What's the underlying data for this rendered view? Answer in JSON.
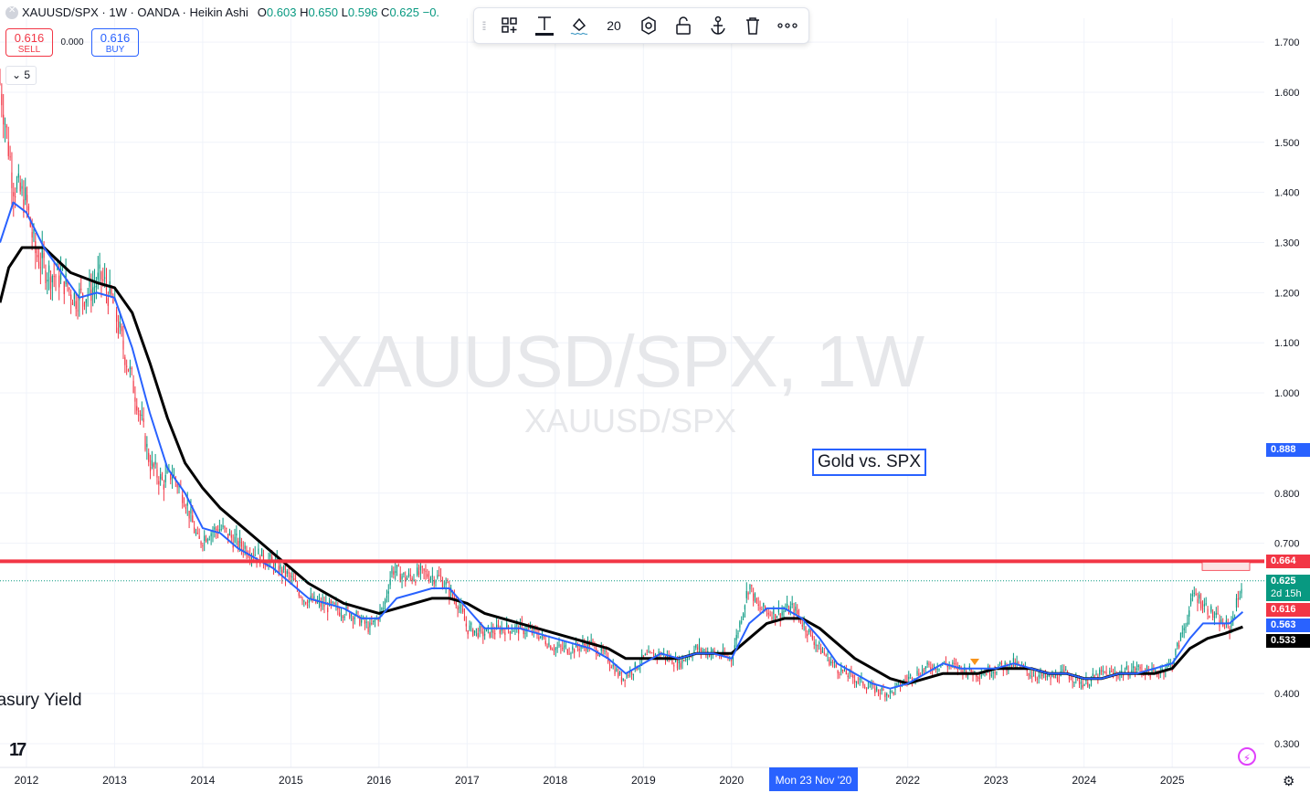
{
  "legend": {
    "symbol": "XAUUSD/SPX · 1W · OANDA · Heikin Ashi",
    "open_label": "O",
    "open": "0.603",
    "high_label": "H",
    "high": "0.650",
    "low_label": "L",
    "low": "0.596",
    "close_label": "C",
    "close": "0.625",
    "change": "−0."
  },
  "trade": {
    "sell_price": "0.616",
    "sell_label": "SELL",
    "spread": "0.000",
    "buy_price": "0.616",
    "buy_label": "BUY"
  },
  "indicators_toggle": "5",
  "toolbar": {
    "font_size": "20"
  },
  "watermark": {
    "main": "XAUUSD/SPX, 1W",
    "sub": "XAUUSD/SPX"
  },
  "notes": {
    "text1": "Gold vs. SPX",
    "text2": "easury Yield"
  },
  "crosshair": {
    "date": "Mon 23 Nov '20"
  },
  "badges": {
    "alert": "0.888",
    "level": "0.664",
    "last": "0.625",
    "countdown": "2d 15h",
    "bid": "0.616",
    "ma_fast": "0.563",
    "ma_slow": "0.533"
  },
  "colors": {
    "up": "#089981",
    "down": "#f23645",
    "ma_fast": "#2962ff",
    "ma_slow": "#000000",
    "level": "#f23645"
  },
  "chart_data": {
    "type": "candlestick",
    "title": "XAUUSD/SPX, 1W",
    "y_ticks": [
      1.7,
      1.6,
      1.5,
      1.4,
      1.3,
      1.2,
      1.1,
      1.0,
      0.8,
      0.7,
      0.4,
      0.3
    ],
    "y_tick_labels": [
      "1.700",
      "1.600",
      "1.500",
      "1.400",
      "1.300",
      "1.200",
      "1.100",
      "1.000",
      "0.800",
      "0.700",
      "0.400",
      "0.300"
    ],
    "x_ticks": [
      "2012",
      "2013",
      "2014",
      "2015",
      "2016",
      "2017",
      "2018",
      "2019",
      "2020",
      "2022",
      "2023",
      "2024",
      "2025"
    ],
    "x_tick_dates": [
      2012.0,
      2013.0,
      2014.0,
      2015.0,
      2016.0,
      2017.0,
      2018.0,
      2019.0,
      2020.0,
      2022.0,
      2023.0,
      2024.0,
      2025.0
    ],
    "ylim": [
      0.23,
      1.78
    ],
    "xlim": [
      2011.7,
      2025.9
    ],
    "horizontal_level": 0.664,
    "price_path": [
      [
        2011.7,
        1.62
      ],
      [
        2011.85,
        1.42
      ],
      [
        2012.0,
        1.38
      ],
      [
        2012.1,
        1.28
      ],
      [
        2012.25,
        1.24
      ],
      [
        2012.4,
        1.23
      ],
      [
        2012.55,
        1.19
      ],
      [
        2012.7,
        1.2
      ],
      [
        2012.85,
        1.23
      ],
      [
        2012.98,
        1.18
      ],
      [
        2013.1,
        1.09
      ],
      [
        2013.25,
        0.99
      ],
      [
        2013.4,
        0.86
      ],
      [
        2013.55,
        0.82
      ],
      [
        2013.65,
        0.84
      ],
      [
        2013.8,
        0.79
      ],
      [
        2013.95,
        0.7
      ],
      [
        2014.05,
        0.72
      ],
      [
        2014.2,
        0.73
      ],
      [
        2014.4,
        0.7
      ],
      [
        2014.6,
        0.68
      ],
      [
        2014.8,
        0.66
      ],
      [
        2015.0,
        0.63
      ],
      [
        2015.15,
        0.59
      ],
      [
        2015.3,
        0.58
      ],
      [
        2015.5,
        0.57
      ],
      [
        2015.7,
        0.56
      ],
      [
        2015.9,
        0.53
      ],
      [
        2016.05,
        0.57
      ],
      [
        2016.15,
        0.65
      ],
      [
        2016.3,
        0.63
      ],
      [
        2016.5,
        0.64
      ],
      [
        2016.7,
        0.63
      ],
      [
        2016.9,
        0.58
      ],
      [
        2017.0,
        0.53
      ],
      [
        2017.2,
        0.52
      ],
      [
        2017.4,
        0.53
      ],
      [
        2017.6,
        0.53
      ],
      [
        2017.8,
        0.52
      ],
      [
        2018.0,
        0.49
      ],
      [
        2018.2,
        0.49
      ],
      [
        2018.4,
        0.5
      ],
      [
        2018.6,
        0.47
      ],
      [
        2018.75,
        0.43
      ],
      [
        2018.9,
        0.45
      ],
      [
        2019.0,
        0.47
      ],
      [
        2019.2,
        0.48
      ],
      [
        2019.4,
        0.46
      ],
      [
        2019.6,
        0.49
      ],
      [
        2019.8,
        0.48
      ],
      [
        2020.0,
        0.47
      ],
      [
        2020.2,
        0.62
      ],
      [
        2020.3,
        0.57
      ],
      [
        2020.5,
        0.56
      ],
      [
        2020.7,
        0.57
      ],
      [
        2020.85,
        0.53
      ],
      [
        2021.0,
        0.49
      ],
      [
        2021.2,
        0.45
      ],
      [
        2021.4,
        0.43
      ],
      [
        2021.6,
        0.41
      ],
      [
        2021.8,
        0.4
      ],
      [
        2022.0,
        0.43
      ],
      [
        2022.2,
        0.45
      ],
      [
        2022.4,
        0.46
      ],
      [
        2022.6,
        0.45
      ],
      [
        2022.8,
        0.44
      ],
      [
        2023.0,
        0.45
      ],
      [
        2023.2,
        0.46
      ],
      [
        2023.4,
        0.44
      ],
      [
        2023.6,
        0.43
      ],
      [
        2023.8,
        0.44
      ],
      [
        2024.0,
        0.42
      ],
      [
        2024.2,
        0.44
      ],
      [
        2024.4,
        0.44
      ],
      [
        2024.6,
        0.45
      ],
      [
        2024.8,
        0.44
      ],
      [
        2025.0,
        0.46
      ],
      [
        2025.15,
        0.54
      ],
      [
        2025.25,
        0.6
      ],
      [
        2025.4,
        0.57
      ],
      [
        2025.55,
        0.54
      ],
      [
        2025.65,
        0.53
      ],
      [
        2025.75,
        0.59
      ],
      [
        2025.8,
        0.625
      ]
    ],
    "ma_fast": [
      [
        2011.7,
        1.3
      ],
      [
        2011.85,
        1.38
      ],
      [
        2012.0,
        1.36
      ],
      [
        2012.2,
        1.29
      ],
      [
        2012.4,
        1.24
      ],
      [
        2012.6,
        1.19
      ],
      [
        2012.8,
        1.2
      ],
      [
        2013.0,
        1.19
      ],
      [
        2013.2,
        1.09
      ],
      [
        2013.4,
        0.96
      ],
      [
        2013.6,
        0.85
      ],
      [
        2013.8,
        0.8
      ],
      [
        2014.0,
        0.73
      ],
      [
        2014.2,
        0.72
      ],
      [
        2014.4,
        0.69
      ],
      [
        2014.6,
        0.67
      ],
      [
        2014.8,
        0.65
      ],
      [
        2015.0,
        0.62
      ],
      [
        2015.2,
        0.59
      ],
      [
        2015.4,
        0.58
      ],
      [
        2015.6,
        0.57
      ],
      [
        2015.8,
        0.55
      ],
      [
        2016.0,
        0.55
      ],
      [
        2016.2,
        0.59
      ],
      [
        2016.4,
        0.6
      ],
      [
        2016.6,
        0.61
      ],
      [
        2016.8,
        0.61
      ],
      [
        2017.0,
        0.57
      ],
      [
        2017.2,
        0.53
      ],
      [
        2017.4,
        0.53
      ],
      [
        2017.6,
        0.53
      ],
      [
        2017.8,
        0.52
      ],
      [
        2018.0,
        0.51
      ],
      [
        2018.2,
        0.5
      ],
      [
        2018.4,
        0.49
      ],
      [
        2018.6,
        0.47
      ],
      [
        2018.8,
        0.44
      ],
      [
        2019.0,
        0.46
      ],
      [
        2019.2,
        0.48
      ],
      [
        2019.4,
        0.47
      ],
      [
        2019.6,
        0.48
      ],
      [
        2019.8,
        0.48
      ],
      [
        2020.0,
        0.47
      ],
      [
        2020.2,
        0.54
      ],
      [
        2020.4,
        0.57
      ],
      [
        2020.6,
        0.57
      ],
      [
        2020.8,
        0.55
      ],
      [
        2021.0,
        0.51
      ],
      [
        2021.2,
        0.46
      ],
      [
        2021.4,
        0.44
      ],
      [
        2021.6,
        0.42
      ],
      [
        2021.8,
        0.41
      ],
      [
        2022.0,
        0.42
      ],
      [
        2022.2,
        0.44
      ],
      [
        2022.4,
        0.46
      ],
      [
        2022.6,
        0.45
      ],
      [
        2022.8,
        0.45
      ],
      [
        2023.0,
        0.45
      ],
      [
        2023.2,
        0.46
      ],
      [
        2023.4,
        0.45
      ],
      [
        2023.6,
        0.44
      ],
      [
        2023.8,
        0.44
      ],
      [
        2024.0,
        0.43
      ],
      [
        2024.2,
        0.43
      ],
      [
        2024.4,
        0.44
      ],
      [
        2024.6,
        0.44
      ],
      [
        2024.8,
        0.45
      ],
      [
        2025.0,
        0.46
      ],
      [
        2025.2,
        0.51
      ],
      [
        2025.35,
        0.54
      ],
      [
        2025.5,
        0.54
      ],
      [
        2025.65,
        0.54
      ],
      [
        2025.8,
        0.563
      ]
    ],
    "ma_slow": [
      [
        2011.7,
        1.18
      ],
      [
        2011.8,
        1.25
      ],
      [
        2011.95,
        1.29
      ],
      [
        2012.2,
        1.29
      ],
      [
        2012.5,
        1.24
      ],
      [
        2012.8,
        1.22
      ],
      [
        2013.0,
        1.21
      ],
      [
        2013.2,
        1.16
      ],
      [
        2013.4,
        1.06
      ],
      [
        2013.6,
        0.95
      ],
      [
        2013.8,
        0.86
      ],
      [
        2014.0,
        0.81
      ],
      [
        2014.2,
        0.77
      ],
      [
        2014.4,
        0.74
      ],
      [
        2014.6,
        0.71
      ],
      [
        2014.8,
        0.68
      ],
      [
        2015.0,
        0.65
      ],
      [
        2015.2,
        0.62
      ],
      [
        2015.4,
        0.6
      ],
      [
        2015.6,
        0.58
      ],
      [
        2015.8,
        0.57
      ],
      [
        2016.0,
        0.56
      ],
      [
        2016.2,
        0.57
      ],
      [
        2016.4,
        0.58
      ],
      [
        2016.6,
        0.59
      ],
      [
        2016.8,
        0.59
      ],
      [
        2017.0,
        0.58
      ],
      [
        2017.2,
        0.56
      ],
      [
        2017.4,
        0.55
      ],
      [
        2017.6,
        0.54
      ],
      [
        2017.8,
        0.53
      ],
      [
        2018.0,
        0.52
      ],
      [
        2018.2,
        0.51
      ],
      [
        2018.4,
        0.5
      ],
      [
        2018.6,
        0.49
      ],
      [
        2018.8,
        0.47
      ],
      [
        2019.0,
        0.47
      ],
      [
        2019.2,
        0.47
      ],
      [
        2019.4,
        0.47
      ],
      [
        2019.6,
        0.48
      ],
      [
        2019.8,
        0.48
      ],
      [
        2020.0,
        0.48
      ],
      [
        2020.2,
        0.51
      ],
      [
        2020.4,
        0.54
      ],
      [
        2020.6,
        0.55
      ],
      [
        2020.8,
        0.55
      ],
      [
        2021.0,
        0.53
      ],
      [
        2021.2,
        0.5
      ],
      [
        2021.4,
        0.47
      ],
      [
        2021.6,
        0.45
      ],
      [
        2021.8,
        0.43
      ],
      [
        2022.0,
        0.42
      ],
      [
        2022.2,
        0.43
      ],
      [
        2022.4,
        0.44
      ],
      [
        2022.6,
        0.44
      ],
      [
        2022.8,
        0.44
      ],
      [
        2023.0,
        0.45
      ],
      [
        2023.2,
        0.45
      ],
      [
        2023.4,
        0.45
      ],
      [
        2023.6,
        0.44
      ],
      [
        2023.8,
        0.44
      ],
      [
        2024.0,
        0.43
      ],
      [
        2024.2,
        0.43
      ],
      [
        2024.4,
        0.44
      ],
      [
        2024.6,
        0.44
      ],
      [
        2024.8,
        0.44
      ],
      [
        2025.0,
        0.45
      ],
      [
        2025.2,
        0.49
      ],
      [
        2025.4,
        0.51
      ],
      [
        2025.6,
        0.52
      ],
      [
        2025.8,
        0.533
      ]
    ]
  }
}
